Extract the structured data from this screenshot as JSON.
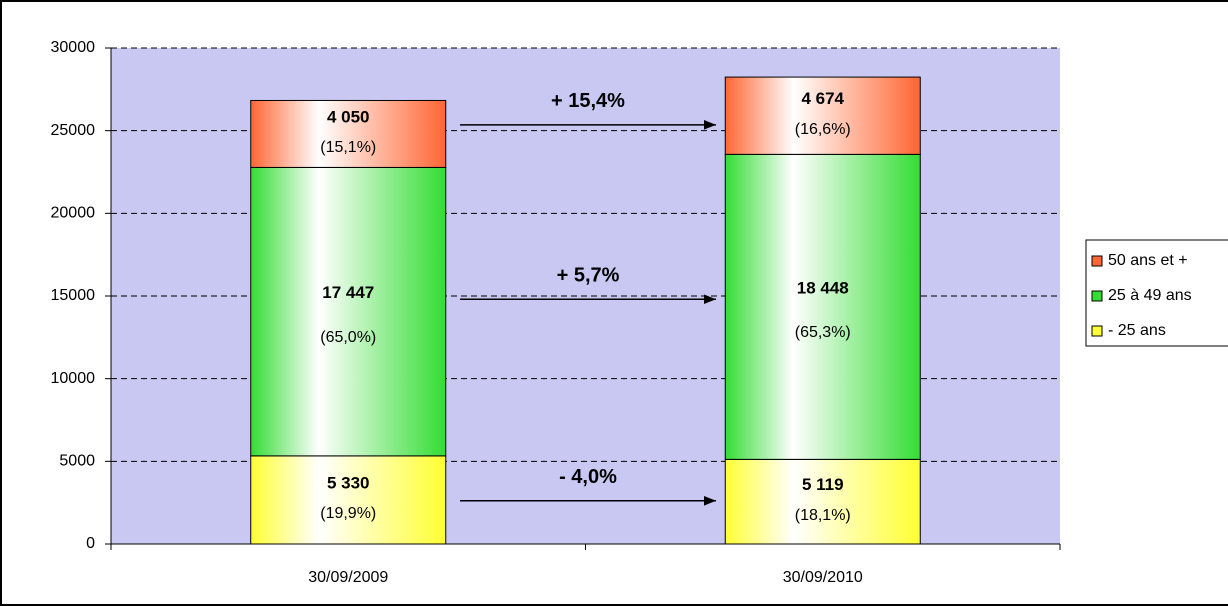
{
  "chart_data": {
    "type": "stacked_bar",
    "categories": [
      "30/09/2009",
      "30/09/2010"
    ],
    "series": [
      {
        "name": "- 25 ans",
        "color": "#ffff33",
        "values": [
          5330,
          5119
        ],
        "value_labels": [
          "5 330",
          "5 119"
        ],
        "percent_labels": [
          "(19,9%)",
          "(18,1%)"
        ],
        "change_label": "- 4,0%",
        "change_color": "#1e8c1e"
      },
      {
        "name": "25 à 49 ans",
        "color": "#33dd33",
        "values": [
          17447,
          18448
        ],
        "value_labels": [
          "17 447",
          "18 448"
        ],
        "percent_labels": [
          "(65,0%)",
          "(65,3%)"
        ],
        "change_label": "+ 5,7%",
        "change_color": "#ff0000"
      },
      {
        "name": "50 ans et +",
        "color": "#ff6633",
        "values": [
          4050,
          4674
        ],
        "value_labels": [
          "4 050",
          "4 674"
        ],
        "percent_labels": [
          "(15,1%)",
          "(16,6%)"
        ],
        "change_label": "+ 15,4%",
        "change_color": "#ff0000"
      }
    ],
    "ylim": [
      0,
      30000
    ],
    "yticks": [
      0,
      5000,
      10000,
      15000,
      20000,
      25000,
      30000
    ],
    "grid": true
  }
}
